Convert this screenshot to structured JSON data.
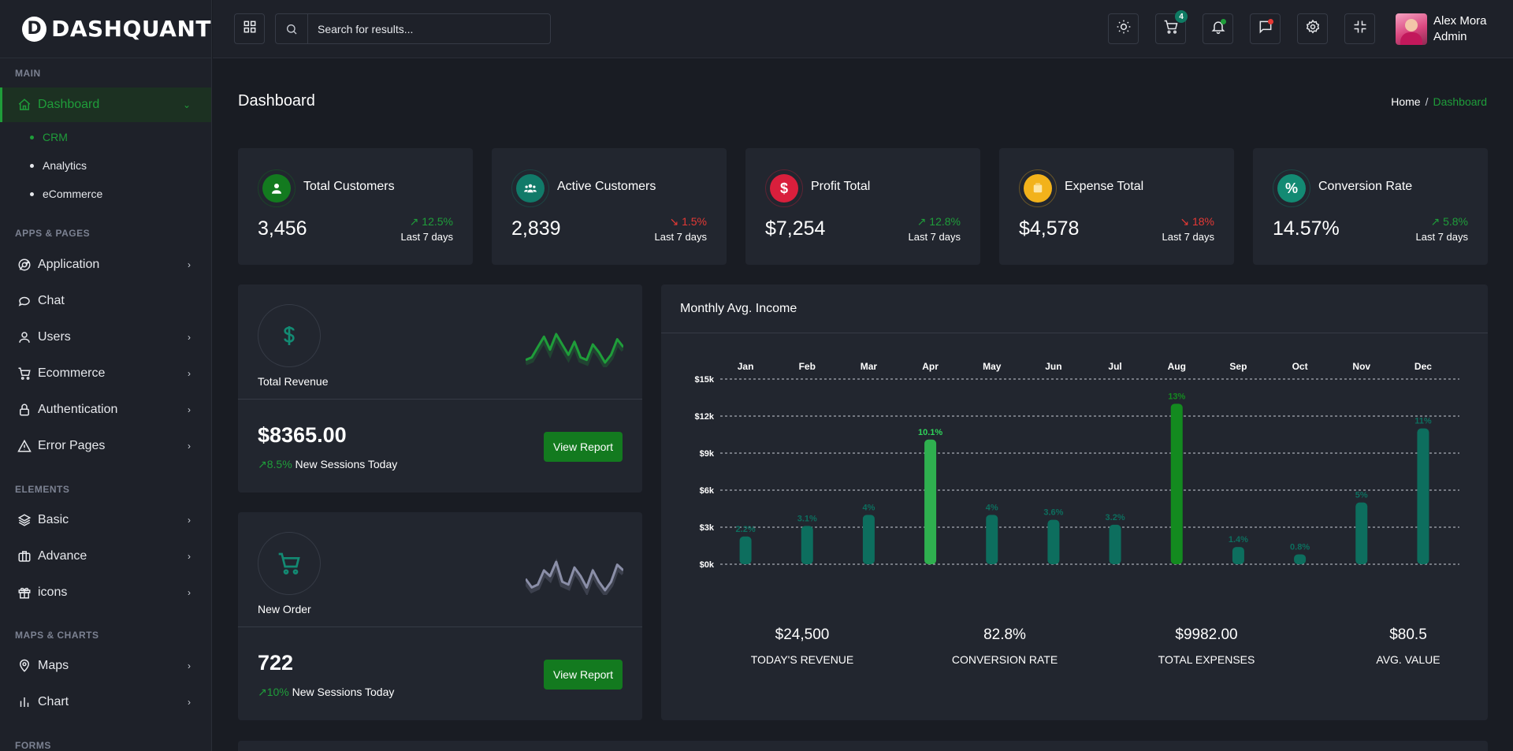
{
  "brand": {
    "logo_letter": "D",
    "name": "DASHQUANT"
  },
  "sidebar": {
    "categories": {
      "main": "MAIN",
      "apps": "APPS & PAGES",
      "elements": "ELEMENTS",
      "maps": "MAPS & CHARTS",
      "forms": "FORMS"
    },
    "dashboard": {
      "label": "Dashboard",
      "icon": "home-icon"
    },
    "sub_items": [
      "CRM",
      "Analytics",
      "eCommerce"
    ],
    "apps": [
      {
        "label": "Application",
        "icon": "chrome-icon",
        "has_children": true
      },
      {
        "label": "Chat",
        "icon": "chat-icon",
        "has_children": false
      },
      {
        "label": "Users",
        "icon": "user-icon",
        "has_children": true
      },
      {
        "label": "Ecommerce",
        "icon": "cart-icon",
        "has_children": true
      },
      {
        "label": "Authentication",
        "icon": "lock-icon",
        "has_children": true
      },
      {
        "label": "Error Pages",
        "icon": "warning-icon",
        "has_children": true
      }
    ],
    "elements": [
      {
        "label": "Basic",
        "icon": "layers-icon"
      },
      {
        "label": "Advance",
        "icon": "briefcase-icon"
      },
      {
        "label": "icons",
        "icon": "gift-icon"
      }
    ],
    "maps": [
      {
        "label": "Maps",
        "icon": "map-pin-icon"
      },
      {
        "label": "Chart",
        "icon": "bar-chart-icon"
      }
    ]
  },
  "header": {
    "search_placeholder": "Search for results...",
    "cart_count": "4",
    "user_name": "Alex Mora",
    "user_role": "Admin"
  },
  "page": {
    "title": "Dashboard",
    "breadcrumb_home": "Home",
    "breadcrumb_sep": "/",
    "breadcrumb_current": "Dashboard"
  },
  "stats": [
    {
      "title": "Total Customers",
      "value": "3,456",
      "trend": "12.5%",
      "direction": "up",
      "period": "Last 7 days",
      "color": "#137a1f",
      "icon": "user-icon"
    },
    {
      "title": "Active Customers",
      "value": "2,839",
      "trend": "1.5%",
      "direction": "down",
      "period": "Last 7 days",
      "color": "#117a69",
      "icon": "users-icon"
    },
    {
      "title": "Profit Total",
      "value": "$7,254",
      "trend": "12.8%",
      "direction": "up",
      "period": "Last 7 days",
      "color": "#d91f3c",
      "icon": "dollar-icon"
    },
    {
      "title": "Expense Total",
      "value": "$4,578",
      "trend": "18%",
      "direction": "down",
      "period": "Last 7 days",
      "color": "#f2b21b",
      "icon": "wallet-icon"
    },
    {
      "title": "Conversion Rate",
      "value": "14.57%",
      "trend": "5.8%",
      "direction": "up",
      "period": "Last 7 days",
      "color": "#138a73",
      "icon": "percent-icon"
    }
  ],
  "revenue": {
    "label": "Total Revenue",
    "value": "$8365.00",
    "pct": "8.5%",
    "sub": "New Sessions Today",
    "button": "View Report",
    "spark": [
      10,
      12,
      20,
      28,
      18,
      30,
      22,
      14,
      24,
      12,
      10,
      22,
      16,
      8,
      14,
      26,
      20
    ],
    "spark_color": "#1f9d3a"
  },
  "orders": {
    "label": "New Order",
    "value": "722",
    "pct": "10%",
    "sub": "New Sessions Today",
    "button": "View Report",
    "spark": [
      16,
      10,
      12,
      22,
      18,
      28,
      14,
      12,
      24,
      18,
      10,
      22,
      14,
      8,
      14,
      26,
      22
    ],
    "spark_color": "#8b8fa8"
  },
  "income": {
    "title": "Monthly Avg. Income",
    "summary": [
      {
        "value": "$24,500",
        "label": "Today's Revenue"
      },
      {
        "value": "82.8%",
        "label": "Conversion Rate"
      },
      {
        "value": "$9982.00",
        "label": "Total Expenses"
      },
      {
        "value": "$80.5",
        "label": "Avg. Value"
      }
    ]
  },
  "chart_data": {
    "type": "bar",
    "categories": [
      "Jan",
      "Feb",
      "Mar",
      "Apr",
      "May",
      "Jun",
      "Jul",
      "Aug",
      "Sep",
      "Oct",
      "Nov",
      "Dec"
    ],
    "values": [
      2250,
      3100,
      4000,
      10100,
      4000,
      3600,
      3200,
      13000,
      1400,
      800,
      5000,
      11000
    ],
    "labels": [
      "2.2%",
      "3.1%",
      "4%",
      "10.1%",
      "4%",
      "3.6%",
      "3.2%",
      "13%",
      "1.4%",
      "0.8%",
      "5%",
      "11%"
    ],
    "highlight": [
      "none",
      "none",
      "none",
      "light",
      "none",
      "none",
      "none",
      "dark",
      "none",
      "none",
      "none",
      "none"
    ],
    "yticks": [
      "$0k",
      "$3k",
      "$6k",
      "$9k",
      "$12k",
      "$15k"
    ],
    "ylim": [
      0,
      15000
    ],
    "grid": true,
    "colors": {
      "default": "#0d6e5e",
      "light": "#2fb04f",
      "dark": "#138a1f"
    }
  }
}
